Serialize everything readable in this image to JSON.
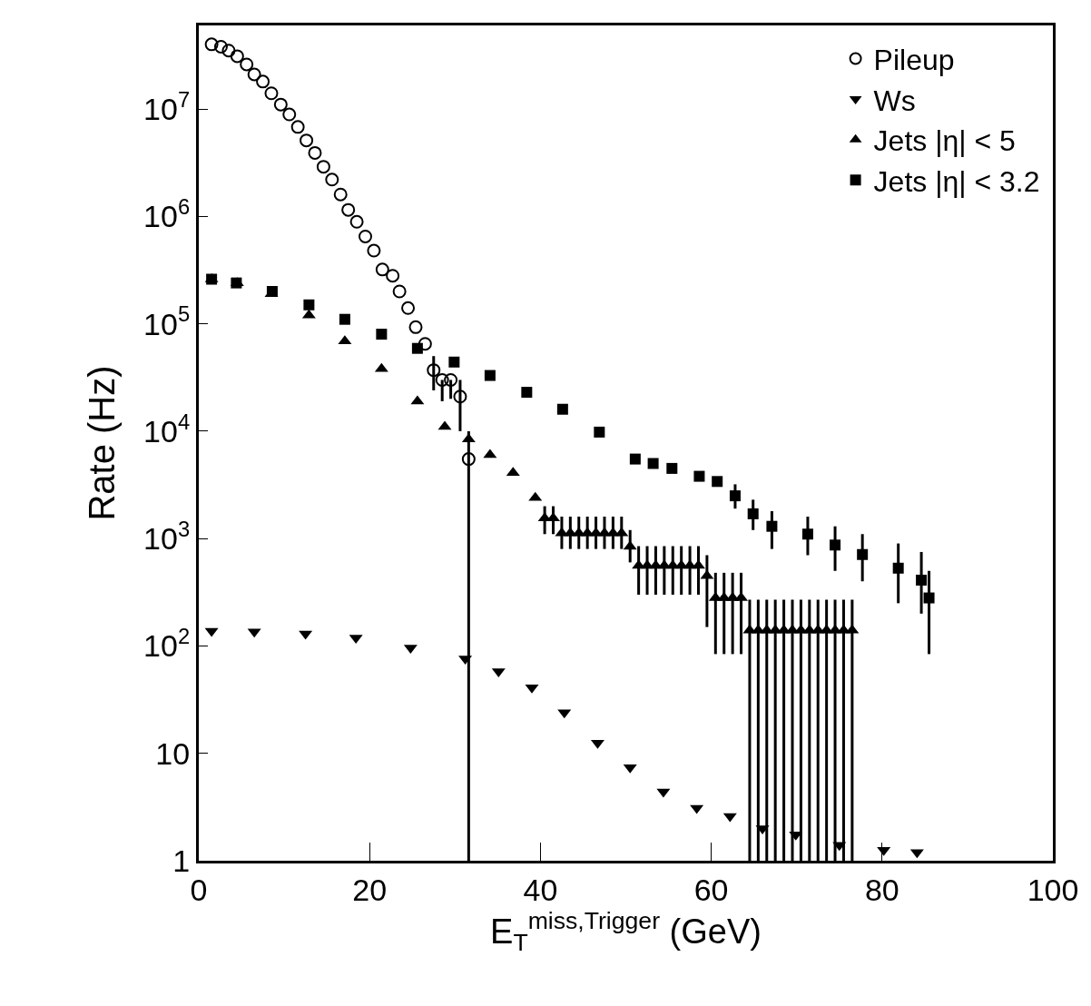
{
  "chart_data": {
    "type": "scatter",
    "xlabel": "E$_{T}$$^{miss,Trigger}$ (GeV)",
    "ylabel": "Rate (Hz)",
    "xlim": [
      0,
      100
    ],
    "xticks": [
      0,
      20,
      40,
      60,
      80,
      100
    ],
    "ylim": [
      1,
      60000000
    ],
    "log": true,
    "yticks": [
      1,
      10,
      {
        "value": 100,
        "label": "10$^{2}$"
      },
      {
        "value": 1000,
        "label": "10$^{3}$"
      },
      {
        "value": 10000,
        "label": "10$^{4}$"
      },
      {
        "value": 100000,
        "label": "10$^{5}$"
      },
      {
        "value": 1000000,
        "label": "10$^{6}$"
      },
      {
        "value": 10000000,
        "label": "10$^{7}$"
      }
    ],
    "legend": "top right",
    "series": [
      {
        "name": "Pileup",
        "color": "#000000",
        "marker": "circle",
        "x": [
          1.5,
          2.6,
          3.5,
          4.5,
          5.6,
          6.5,
          7.5,
          8.5,
          9.6,
          10.6,
          11.6,
          12.6,
          13.6,
          14.6,
          15.6,
          16.6,
          17.5,
          18.5,
          19.5,
          20.5,
          21.5,
          22.7,
          23.5,
          24.5,
          25.4,
          26.5,
          27.5,
          28.5,
          29.5,
          30.6,
          31.6
        ],
        "values": [
          40000000,
          38000000,
          35000000,
          31000000,
          26000000,
          21000000,
          18000000,
          14000000,
          11000000,
          8900000,
          6800000,
          5100000,
          3900000,
          2900000,
          2200000,
          1600000,
          1150000,
          890000,
          650000,
          480000,
          320000,
          280000,
          200000,
          140000,
          93000,
          65000,
          37000,
          30000,
          30000,
          21000,
          5500
        ],
        "errors": [
          null,
          null,
          null,
          null,
          null,
          null,
          null,
          null,
          null,
          null,
          null,
          null,
          null,
          null,
          null,
          null,
          null,
          null,
          null,
          null,
          null,
          null,
          null,
          null,
          null,
          null,
          [
            24000,
            50000
          ],
          [
            19000,
            30000
          ],
          [
            20000,
            30000
          ],
          [
            10000,
            30000
          ],
          [
            1,
            10000
          ]
        ]
      },
      {
        "name": "Ws",
        "color": "#000000",
        "marker": "triangle-down",
        "x": [
          1.5,
          6.5,
          12.5,
          18.4,
          24.8,
          31.2,
          35.1,
          39.0,
          42.8,
          46.7,
          50.5,
          54.4,
          58.3,
          62.2,
          66.0,
          69.9,
          75.0,
          80.2,
          84.1
        ],
        "values": [
          138,
          136,
          130,
          119,
          96,
          76,
          58,
          41,
          24,
          12.5,
          7.4,
          4.4,
          3.1,
          2.6,
          2.0,
          1.75,
          1.4,
          1.26,
          1.2
        ]
      },
      {
        "name": "Jets |η| < 5",
        "color": "#000000",
        "marker": "triangle",
        "x": [
          1.5,
          4.5,
          8.5,
          12.9,
          17.1,
          21.4,
          25.6,
          28.8,
          31.6,
          34.1,
          36.8,
          39.4,
          40.5,
          41.5,
          42.5,
          43.5,
          44.5,
          45.5,
          46.5,
          47.5,
          48.5,
          49.5,
          50.5,
          51.5,
          52.5,
          53.5,
          54.5,
          55.5,
          56.5,
          57.5,
          58.5,
          59.5,
          60.5,
          61.5,
          62.5,
          63.5,
          64.5,
          65.5,
          66.5,
          67.5,
          68.5,
          69.5,
          70.5,
          71.5,
          72.5,
          73.5,
          74.5,
          75.5,
          76.5
        ],
        "values": [
          260000,
          240000,
          190000,
          120000,
          69000,
          38000,
          19000,
          11000,
          8400,
          6000,
          4100,
          2400,
          1550,
          1550,
          1120,
          1120,
          1120,
          1120,
          1120,
          1120,
          1120,
          1120,
          840,
          560,
          560,
          560,
          560,
          560,
          560,
          560,
          560,
          450,
          280,
          280,
          280,
          280,
          140,
          140,
          140,
          140,
          140,
          140,
          140,
          140,
          140,
          140,
          140,
          140,
          140
        ],
        "errors": [
          null,
          null,
          null,
          null,
          null,
          null,
          null,
          null,
          null,
          null,
          null,
          null,
          [
            1100,
            2000
          ],
          [
            1100,
            2000
          ],
          [
            800,
            1600
          ],
          [
            800,
            1600
          ],
          [
            800,
            1600
          ],
          [
            800,
            1600
          ],
          [
            800,
            1600
          ],
          [
            800,
            1600
          ],
          [
            800,
            1600
          ],
          [
            800,
            1600
          ],
          [
            600,
            1200
          ],
          [
            300,
            850
          ],
          [
            300,
            850
          ],
          [
            300,
            850
          ],
          [
            300,
            850
          ],
          [
            300,
            850
          ],
          [
            300,
            850
          ],
          [
            300,
            850
          ],
          [
            300,
            850
          ],
          [
            150,
            700
          ],
          [
            84,
            480
          ],
          [
            84,
            480
          ],
          [
            84,
            480
          ],
          [
            84,
            480
          ],
          [
            1,
            270
          ],
          [
            1,
            270
          ],
          [
            1,
            270
          ],
          [
            1,
            270
          ],
          [
            1,
            270
          ],
          [
            1,
            270
          ],
          [
            1,
            270
          ],
          [
            1,
            270
          ],
          [
            1,
            270
          ],
          [
            1,
            270
          ],
          [
            1,
            270
          ],
          [
            1,
            270
          ],
          [
            1,
            270
          ]
        ]
      },
      {
        "name": "Jets |η| < 3.2",
        "color": "#000000",
        "marker": "square",
        "x": [
          1.5,
          4.4,
          8.6,
          12.9,
          17.1,
          21.4,
          25.6,
          29.9,
          34.1,
          38.4,
          42.6,
          46.9,
          51.1,
          53.2,
          55.4,
          58.6,
          60.7,
          62.8,
          64.9,
          67.1,
          71.3,
          74.5,
          77.7,
          81.9,
          84.6,
          85.5
        ],
        "values": [
          260000,
          240000,
          200000,
          150000,
          110000,
          80000,
          59000,
          44000,
          33000,
          23000,
          16000,
          9800,
          5500,
          5000,
          4500,
          3800,
          3400,
          2500,
          1700,
          1300,
          1100,
          870,
          710,
          530,
          410,
          280
        ],
        "errors": [
          null,
          null,
          null,
          null,
          null,
          null,
          null,
          null,
          null,
          null,
          null,
          null,
          null,
          null,
          null,
          null,
          null,
          [
            1900,
            3200
          ],
          [
            1200,
            2300
          ],
          [
            800,
            1800
          ],
          [
            700,
            1600
          ],
          [
            500,
            1300
          ],
          [
            400,
            1100
          ],
          [
            250,
            900
          ],
          [
            200,
            750
          ],
          [
            84,
            500
          ]
        ]
      }
    ]
  }
}
